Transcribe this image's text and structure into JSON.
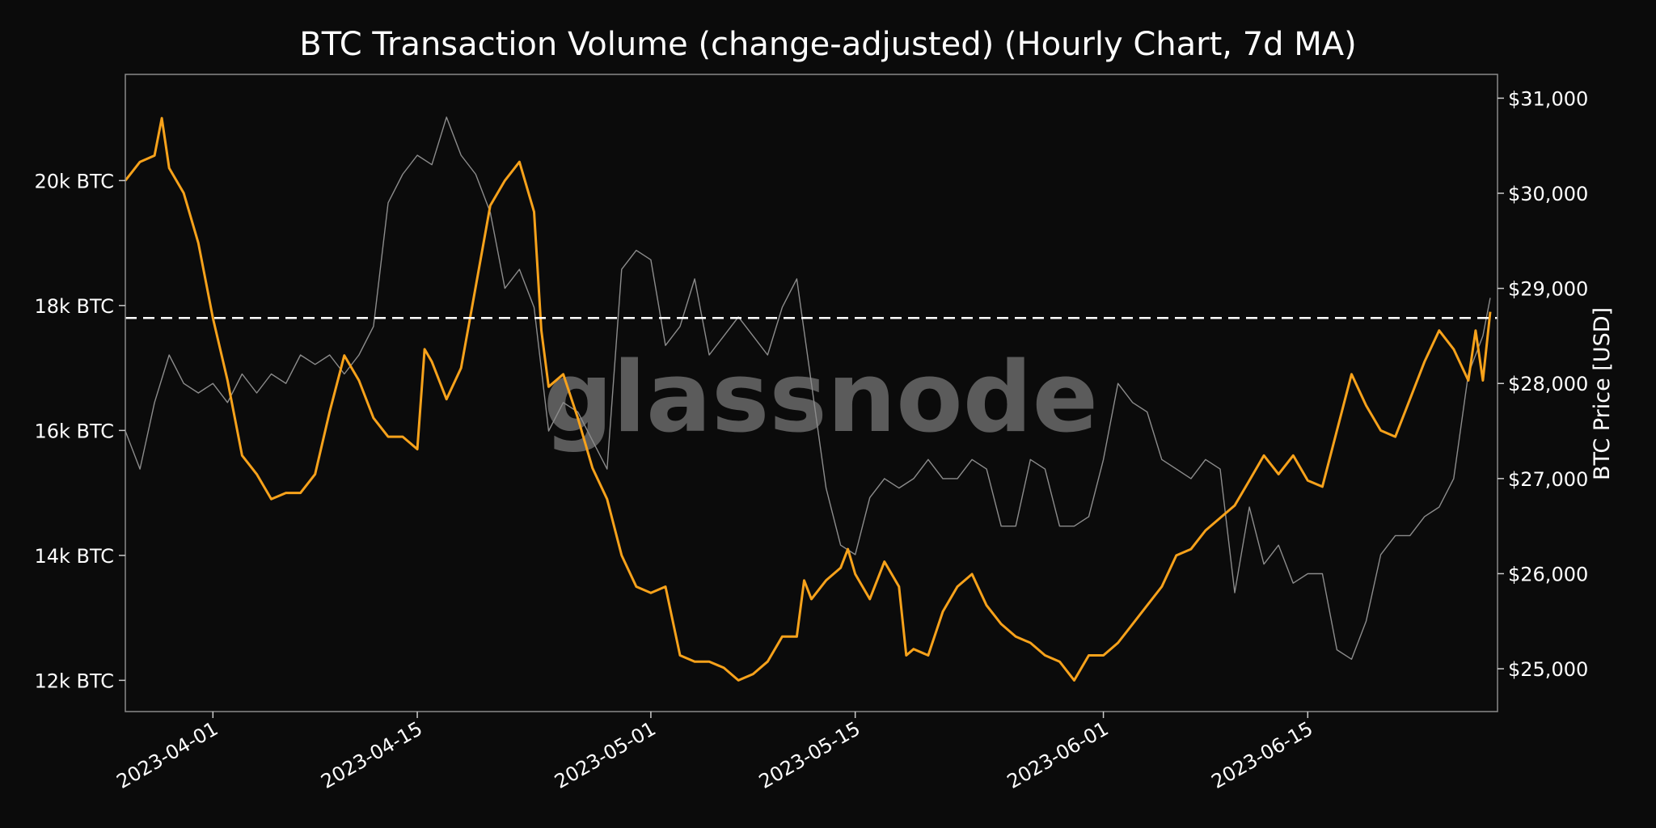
{
  "chart_data": {
    "type": "line",
    "title": "BTC Transaction Volume (change-adjusted) (Hourly Chart, 7d MA)",
    "watermark": "glassnode",
    "ylabel_right": "BTC Price [USD]",
    "ylabel_left": "",
    "xlabel": "",
    "x_range": [
      "2023-03-26",
      "2023-06-28"
    ],
    "ylim_left": [
      11500,
      21700
    ],
    "ylim_right": [
      24550,
      31250
    ],
    "grid": false,
    "legend": "none",
    "colors": {
      "background": "#0b0b0b",
      "volume_line": "#f7a21b",
      "price_line": "#8c8c8c",
      "reference_line": "#ffffff",
      "frame": "#8a8a8a",
      "text": "#ffffff",
      "watermark": "#6a6a6a"
    },
    "left_ticks": [
      {
        "value": 12000,
        "label": "12k BTC"
      },
      {
        "value": 14000,
        "label": "14k BTC"
      },
      {
        "value": 16000,
        "label": "16k BTC"
      },
      {
        "value": 18000,
        "label": "18k BTC"
      },
      {
        "value": 20000,
        "label": "20k BTC"
      }
    ],
    "right_ticks": [
      {
        "value": 25000,
        "label": "$25,000"
      },
      {
        "value": 26000,
        "label": "$26,000"
      },
      {
        "value": 27000,
        "label": "$27,000"
      },
      {
        "value": 28000,
        "label": "$28,000"
      },
      {
        "value": 29000,
        "label": "$29,000"
      },
      {
        "value": 30000,
        "label": "$30,000"
      },
      {
        "value": 31000,
        "label": "$31,000"
      }
    ],
    "x_ticks": [
      {
        "date": "2023-04-01",
        "label": "2023-04-01"
      },
      {
        "date": "2023-04-15",
        "label": "2023-04-15"
      },
      {
        "date": "2023-05-01",
        "label": "2023-05-01"
      },
      {
        "date": "2023-05-15",
        "label": "2023-05-15"
      },
      {
        "date": "2023-06-01",
        "label": "2023-06-01"
      },
      {
        "date": "2023-06-15",
        "label": "2023-06-15"
      }
    ],
    "reference_line": {
      "value": 17800,
      "axis": "left",
      "style": "dashed"
    },
    "series": [
      {
        "axis": "left",
        "color": "#f7a21b",
        "points": [
          [
            "2023-03-26",
            20000
          ],
          [
            "2023-03-27",
            20300
          ],
          [
            "2023-03-28",
            20400
          ],
          [
            "2023-03-28T12",
            21000
          ],
          [
            "2023-03-29",
            20200
          ],
          [
            "2023-03-30",
            19800
          ],
          [
            "2023-03-31",
            19000
          ],
          [
            "2023-04-01",
            17800
          ],
          [
            "2023-04-02",
            16800
          ],
          [
            "2023-04-03",
            15600
          ],
          [
            "2023-04-04",
            15300
          ],
          [
            "2023-04-05",
            14900
          ],
          [
            "2023-04-06",
            15000
          ],
          [
            "2023-04-07",
            15000
          ],
          [
            "2023-04-08",
            15300
          ],
          [
            "2023-04-09",
            16300
          ],
          [
            "2023-04-10",
            17200
          ],
          [
            "2023-04-11",
            16800
          ],
          [
            "2023-04-12",
            16200
          ],
          [
            "2023-04-13",
            15900
          ],
          [
            "2023-04-14",
            15900
          ],
          [
            "2023-04-15",
            15700
          ],
          [
            "2023-04-15T12",
            17300
          ],
          [
            "2023-04-16",
            17100
          ],
          [
            "2023-04-17",
            16500
          ],
          [
            "2023-04-18",
            17000
          ],
          [
            "2023-04-19",
            18300
          ],
          [
            "2023-04-20",
            19600
          ],
          [
            "2023-04-21",
            20000
          ],
          [
            "2023-04-22",
            20300
          ],
          [
            "2023-04-23",
            19500
          ],
          [
            "2023-04-23T12",
            17600
          ],
          [
            "2023-04-24",
            16700
          ],
          [
            "2023-04-25",
            16900
          ],
          [
            "2023-04-26",
            16200
          ],
          [
            "2023-04-27",
            15400
          ],
          [
            "2023-04-28",
            14900
          ],
          [
            "2023-04-29",
            14000
          ],
          [
            "2023-04-30",
            13500
          ],
          [
            "2023-05-01",
            13400
          ],
          [
            "2023-05-02",
            13500
          ],
          [
            "2023-05-03",
            12400
          ],
          [
            "2023-05-04",
            12300
          ],
          [
            "2023-05-05",
            12300
          ],
          [
            "2023-05-06",
            12200
          ],
          [
            "2023-05-07",
            12000
          ],
          [
            "2023-05-08",
            12100
          ],
          [
            "2023-05-09",
            12300
          ],
          [
            "2023-05-10",
            12700
          ],
          [
            "2023-05-11",
            12700
          ],
          [
            "2023-05-11T12",
            13600
          ],
          [
            "2023-05-12",
            13300
          ],
          [
            "2023-05-13",
            13600
          ],
          [
            "2023-05-14",
            13800
          ],
          [
            "2023-05-14T12",
            14100
          ],
          [
            "2023-05-15",
            13700
          ],
          [
            "2023-05-16",
            13300
          ],
          [
            "2023-05-17",
            13900
          ],
          [
            "2023-05-18",
            13500
          ],
          [
            "2023-05-18T12",
            12400
          ],
          [
            "2023-05-19",
            12500
          ],
          [
            "2023-05-20",
            12400
          ],
          [
            "2023-05-21",
            13100
          ],
          [
            "2023-05-22",
            13500
          ],
          [
            "2023-05-23",
            13700
          ],
          [
            "2023-05-24",
            13200
          ],
          [
            "2023-05-25",
            12900
          ],
          [
            "2023-05-26",
            12700
          ],
          [
            "2023-05-27",
            12600
          ],
          [
            "2023-05-28",
            12400
          ],
          [
            "2023-05-29",
            12300
          ],
          [
            "2023-05-30",
            12000
          ],
          [
            "2023-05-31",
            12400
          ],
          [
            "2023-06-01",
            12400
          ],
          [
            "2023-06-02",
            12600
          ],
          [
            "2023-06-03",
            12900
          ],
          [
            "2023-06-04",
            13200
          ],
          [
            "2023-06-05",
            13500
          ],
          [
            "2023-06-06",
            14000
          ],
          [
            "2023-06-07",
            14100
          ],
          [
            "2023-06-08",
            14400
          ],
          [
            "2023-06-09",
            14600
          ],
          [
            "2023-06-10",
            14800
          ],
          [
            "2023-06-11",
            15200
          ],
          [
            "2023-06-12",
            15600
          ],
          [
            "2023-06-13",
            15300
          ],
          [
            "2023-06-14",
            15600
          ],
          [
            "2023-06-15",
            15200
          ],
          [
            "2023-06-16",
            15100
          ],
          [
            "2023-06-17",
            16000
          ],
          [
            "2023-06-18",
            16900
          ],
          [
            "2023-06-19",
            16400
          ],
          [
            "2023-06-20",
            16000
          ],
          [
            "2023-06-21",
            15900
          ],
          [
            "2023-06-22",
            16500
          ],
          [
            "2023-06-23",
            17100
          ],
          [
            "2023-06-24",
            17600
          ],
          [
            "2023-06-25",
            17300
          ],
          [
            "2023-06-26",
            16800
          ],
          [
            "2023-06-26T12",
            17600
          ],
          [
            "2023-06-27",
            16800
          ],
          [
            "2023-06-27T12",
            17900
          ]
        ]
      },
      {
        "axis": "right",
        "color": "#8c8c8c",
        "points": [
          [
            "2023-03-26",
            27500
          ],
          [
            "2023-03-27",
            27100
          ],
          [
            "2023-03-28",
            27800
          ],
          [
            "2023-03-29",
            28300
          ],
          [
            "2023-03-30",
            28000
          ],
          [
            "2023-03-31",
            27900
          ],
          [
            "2023-04-01",
            28000
          ],
          [
            "2023-04-02",
            27800
          ],
          [
            "2023-04-03",
            28100
          ],
          [
            "2023-04-04",
            27900
          ],
          [
            "2023-04-05",
            28100
          ],
          [
            "2023-04-06",
            28000
          ],
          [
            "2023-04-07",
            28300
          ],
          [
            "2023-04-08",
            28200
          ],
          [
            "2023-04-09",
            28300
          ],
          [
            "2023-04-10",
            28100
          ],
          [
            "2023-04-11",
            28300
          ],
          [
            "2023-04-12",
            28600
          ],
          [
            "2023-04-13",
            29900
          ],
          [
            "2023-04-14",
            30200
          ],
          [
            "2023-04-15",
            30400
          ],
          [
            "2023-04-16",
            30300
          ],
          [
            "2023-04-17",
            30800
          ],
          [
            "2023-04-18",
            30400
          ],
          [
            "2023-04-19",
            30200
          ],
          [
            "2023-04-20",
            29800
          ],
          [
            "2023-04-21",
            29000
          ],
          [
            "2023-04-22",
            29200
          ],
          [
            "2023-04-23",
            28800
          ],
          [
            "2023-04-24",
            27500
          ],
          [
            "2023-04-25",
            27800
          ],
          [
            "2023-04-26",
            27700
          ],
          [
            "2023-04-27",
            27400
          ],
          [
            "2023-04-28",
            27100
          ],
          [
            "2023-04-29",
            29200
          ],
          [
            "2023-04-30",
            29400
          ],
          [
            "2023-05-01",
            29300
          ],
          [
            "2023-05-02",
            28400
          ],
          [
            "2023-05-03",
            28600
          ],
          [
            "2023-05-04",
            29100
          ],
          [
            "2023-05-05",
            28300
          ],
          [
            "2023-05-06",
            28500
          ],
          [
            "2023-05-07",
            28700
          ],
          [
            "2023-05-08",
            28500
          ],
          [
            "2023-05-09",
            28300
          ],
          [
            "2023-05-10",
            28800
          ],
          [
            "2023-05-11",
            29100
          ],
          [
            "2023-05-12",
            28000
          ],
          [
            "2023-05-13",
            26900
          ],
          [
            "2023-05-14",
            26300
          ],
          [
            "2023-05-15",
            26200
          ],
          [
            "2023-05-16",
            26800
          ],
          [
            "2023-05-17",
            27000
          ],
          [
            "2023-05-18",
            26900
          ],
          [
            "2023-05-19",
            27000
          ],
          [
            "2023-05-20",
            27200
          ],
          [
            "2023-05-21",
            27000
          ],
          [
            "2023-05-22",
            27000
          ],
          [
            "2023-05-23",
            27200
          ],
          [
            "2023-05-24",
            27100
          ],
          [
            "2023-05-25",
            26500
          ],
          [
            "2023-05-26",
            26500
          ],
          [
            "2023-05-27",
            27200
          ],
          [
            "2023-05-28",
            27100
          ],
          [
            "2023-05-29",
            26500
          ],
          [
            "2023-05-30",
            26500
          ],
          [
            "2023-05-31",
            26600
          ],
          [
            "2023-06-01",
            27200
          ],
          [
            "2023-06-02",
            28000
          ],
          [
            "2023-06-03",
            27800
          ],
          [
            "2023-06-04",
            27700
          ],
          [
            "2023-06-05",
            27200
          ],
          [
            "2023-06-06",
            27100
          ],
          [
            "2023-06-07",
            27000
          ],
          [
            "2023-06-08",
            27200
          ],
          [
            "2023-06-09",
            27100
          ],
          [
            "2023-06-10",
            25800
          ],
          [
            "2023-06-11",
            26700
          ],
          [
            "2023-06-12",
            26100
          ],
          [
            "2023-06-13",
            26300
          ],
          [
            "2023-06-14",
            25900
          ],
          [
            "2023-06-15",
            26000
          ],
          [
            "2023-06-16",
            26000
          ],
          [
            "2023-06-17",
            25200
          ],
          [
            "2023-06-18",
            25100
          ],
          [
            "2023-06-19",
            25500
          ],
          [
            "2023-06-20",
            26200
          ],
          [
            "2023-06-21",
            26400
          ],
          [
            "2023-06-22",
            26400
          ],
          [
            "2023-06-23",
            26600
          ],
          [
            "2023-06-24",
            26700
          ],
          [
            "2023-06-25",
            27000
          ],
          [
            "2023-06-26",
            28100
          ],
          [
            "2023-06-27",
            28500
          ],
          [
            "2023-06-27T12",
            28900
          ]
        ]
      }
    ]
  }
}
